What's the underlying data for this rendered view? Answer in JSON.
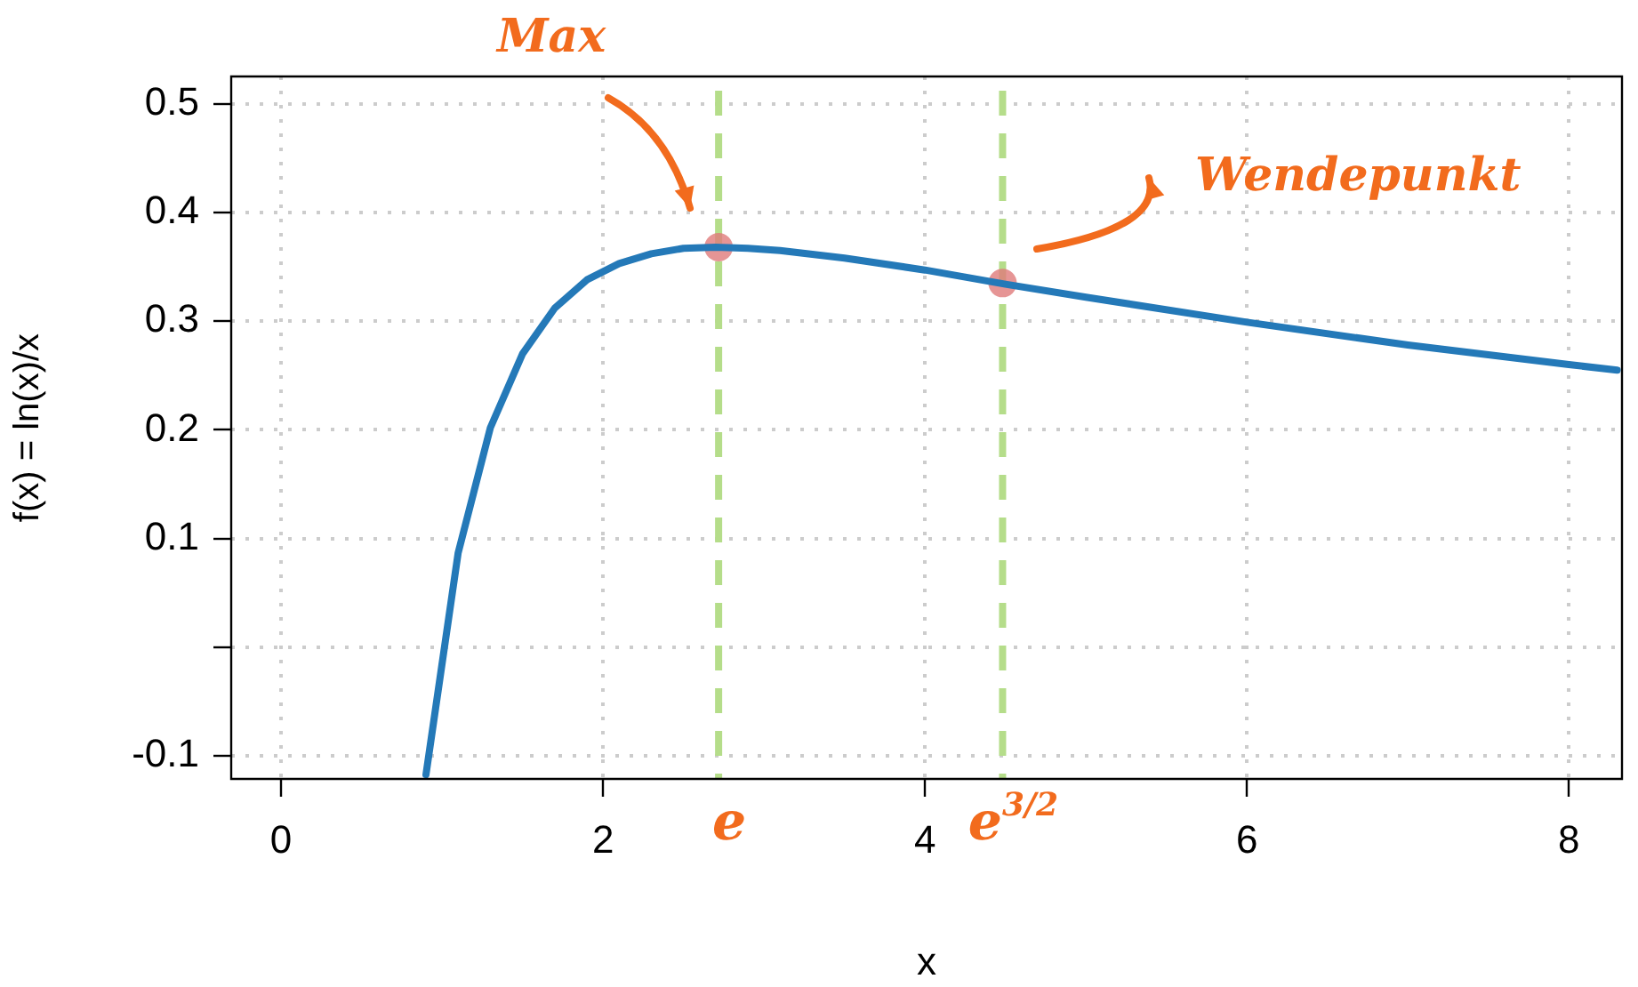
{
  "chart_data": {
    "type": "line",
    "xlabel": "x",
    "ylabel": "f(x) = ln(x)/x",
    "xlim": [
      -0.31,
      8.33
    ],
    "xticks": [
      0,
      2,
      4,
      6,
      8
    ],
    "ylim": [
      -0.121,
      0.525
    ],
    "yticks": [
      -0.1,
      {
        "value": 0,
        "label": null
      },
      0.1,
      0.2,
      0.3,
      0.4,
      0.5
    ],
    "grid": true,
    "legend": false,
    "marker": "none",
    "line_style": "solid",
    "series": [
      {
        "color": "#2479b8",
        "x": [
          0.9,
          1.1,
          1.3,
          1.5,
          1.7,
          1.9,
          2.1,
          2.3,
          2.5,
          2.7,
          2.9,
          3.1,
          3.5,
          4,
          4.5,
          5,
          6,
          7,
          8,
          8.3
        ],
        "values": [
          -0.117,
          0.087,
          0.202,
          0.27,
          0.312,
          0.338,
          0.353,
          0.362,
          0.367,
          0.368,
          0.367,
          0.365,
          0.358,
          0.347,
          0.334,
          0.322,
          0.299,
          0.278,
          0.26,
          0.255
        ]
      },
      {
        "type": "scatter",
        "color": "#e07a7a",
        "marker": "circle",
        "x": [
          2.718,
          4.482
        ],
        "values": [
          0.368,
          0.335
        ]
      }
    ],
    "ref_lines": [
      {
        "axis": "x",
        "value": 2.718,
        "label": "e",
        "color": "#b5dd8a",
        "line_style": "dashed"
      },
      {
        "axis": "x",
        "value": 4.482,
        "label": "e$^{3/2}$",
        "color": "#b5dd8a",
        "line_style": "dashed"
      }
    ],
    "annotations": [
      "Max",
      "Wendepunkt"
    ]
  }
}
